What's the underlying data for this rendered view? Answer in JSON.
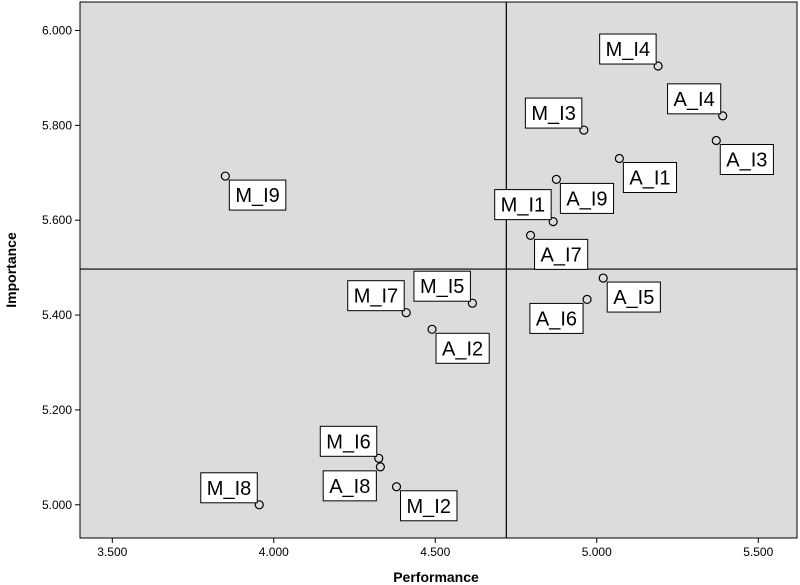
{
  "chart_data": {
    "type": "scatter",
    "title": "",
    "xlabel": "Performance",
    "ylabel": "Importance",
    "xlim": [
      3.4,
      5.62
    ],
    "ylim": [
      4.93,
      6.06
    ],
    "xticks": [
      "3.500",
      "4.000",
      "4.500",
      "5.000",
      "5.500"
    ],
    "yticks": [
      "5.000",
      "5.200",
      "5.400",
      "5.600",
      "5.800",
      "6.000"
    ],
    "reference_lines": {
      "x": 4.72,
      "y": 5.497
    },
    "grid": false,
    "background_color": "#dcdcdc",
    "points": [
      {
        "label": "M_I4",
        "x": 5.19,
        "y": 5.925,
        "label_pos": "top-left"
      },
      {
        "label": "A_I4",
        "x": 5.39,
        "y": 5.82,
        "label_pos": "top-left"
      },
      {
        "label": "M_I3",
        "x": 4.96,
        "y": 5.79,
        "label_pos": "top-left"
      },
      {
        "label": "A_I3",
        "x": 5.37,
        "y": 5.768,
        "label_pos": "bottom-right"
      },
      {
        "label": "A_I1",
        "x": 5.07,
        "y": 5.73,
        "label_pos": "bottom-right"
      },
      {
        "label": "M_I9",
        "x": 3.85,
        "y": 5.693,
        "label_pos": "bottom-right"
      },
      {
        "label": "A_I9",
        "x": 4.875,
        "y": 5.686,
        "label_pos": "bottom-right"
      },
      {
        "label": "M_I1",
        "x": 4.865,
        "y": 5.597,
        "label_pos": "top-left"
      },
      {
        "label": "A_I7",
        "x": 4.795,
        "y": 5.568,
        "label_pos": "bottom-right"
      },
      {
        "label": "A_I5",
        "x": 5.02,
        "y": 5.478,
        "label_pos": "bottom-right"
      },
      {
        "label": "A_I6",
        "x": 4.97,
        "y": 5.433,
        "label_pos": "bottom-left"
      },
      {
        "label": "M_I5",
        "x": 4.615,
        "y": 5.425,
        "label_pos": "top-left"
      },
      {
        "label": "M_I7",
        "x": 4.41,
        "y": 5.405,
        "label_pos": "top-left"
      },
      {
        "label": "A_I2",
        "x": 4.49,
        "y": 5.37,
        "label_pos": "bottom-right"
      },
      {
        "label": "M_I6",
        "x": 4.325,
        "y": 5.098,
        "label_pos": "top-left"
      },
      {
        "label": "A_I8",
        "x": 4.33,
        "y": 5.08,
        "label_pos": "bottom-left"
      },
      {
        "label": "M_I2",
        "x": 4.38,
        "y": 5.038,
        "label_pos": "bottom-right"
      },
      {
        "label": "M_I8",
        "x": 3.955,
        "y": 5.0,
        "label_pos": "top-left"
      }
    ]
  }
}
